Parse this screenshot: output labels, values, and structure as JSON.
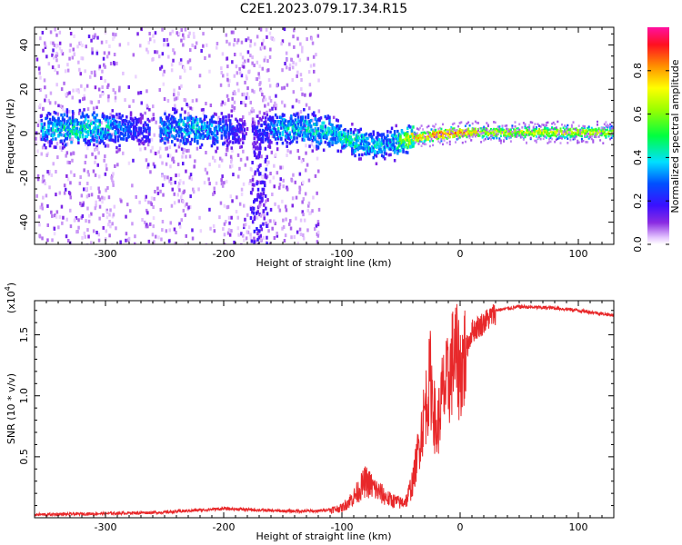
{
  "title": "C2E1.2023.079.17.34.R15",
  "chart_data": [
    {
      "type": "heatmap",
      "xlabel": "Height of straight line (km)",
      "ylabel": "Frequency (Hz)",
      "xlim": [
        -360,
        130
      ],
      "ylim": [
        -50,
        48
      ],
      "xticks": [
        -300,
        -200,
        -100,
        0,
        100
      ],
      "xtick_labels": [
        "-300",
        "-200",
        "-100",
        "0",
        "100"
      ],
      "yticks": [
        -40,
        -20,
        0,
        20,
        40
      ],
      "ytick_labels": [
        "-40",
        "-20",
        "0",
        "20",
        "40"
      ],
      "colorbar": {
        "label": "Normalized spectral amplitude",
        "range": [
          0,
          1
        ],
        "ticks": [
          0.0,
          0.2,
          0.4,
          0.6,
          0.8
        ],
        "tick_labels": [
          "0.0",
          "0.2",
          "0.4",
          "0.6",
          "0.8"
        ]
      },
      "ridge": {
        "x": [
          -350,
          -330,
          -300,
          -270,
          -250,
          -230,
          -200,
          -180,
          -150,
          -130,
          -110,
          -90,
          -75,
          -60,
          -45,
          -35,
          -20,
          0,
          20,
          50,
          100,
          130
        ],
        "center_hz": [
          3,
          3,
          3,
          2,
          3,
          3,
          2,
          1,
          3,
          3,
          1,
          -3,
          -5,
          -4,
          -2,
          -1,
          0,
          1,
          1,
          1,
          1,
          1
        ],
        "peak_amplitude": [
          0.35,
          0.45,
          0.4,
          0.2,
          0.35,
          0.4,
          0.3,
          0.15,
          0.4,
          0.4,
          0.4,
          0.45,
          0.4,
          0.35,
          0.65,
          0.8,
          0.9,
          0.85,
          0.7,
          0.7,
          0.7,
          0.65
        ]
      }
    },
    {
      "type": "line",
      "series": [
        {
          "name": "SNR",
          "color": "#e8282a"
        }
      ],
      "x": [
        -360,
        -300,
        -250,
        -200,
        -150,
        -120,
        -100,
        -90,
        -80,
        -70,
        -60,
        -50,
        -45,
        -40,
        -35,
        -30,
        -25,
        -20,
        -15,
        -10,
        -5,
        0,
        10,
        20,
        30,
        50,
        80,
        100,
        115,
        130
      ],
      "y": [
        0.02,
        0.03,
        0.04,
        0.07,
        0.05,
        0.05,
        0.08,
        0.17,
        0.3,
        0.22,
        0.15,
        0.12,
        0.15,
        0.3,
        0.6,
        0.9,
        1.2,
        0.7,
        1.05,
        1.15,
        1.4,
        1.25,
        1.55,
        1.62,
        1.7,
        1.73,
        1.72,
        1.7,
        1.68,
        1.66
      ],
      "xlabel": "Height of straight line (km)",
      "ylabel": "SNR (10 * v/v)",
      "multiplier": "(x10",
      "multiplier_exp": "4",
      "multiplier_close": ")",
      "xlim": [
        -360,
        130
      ],
      "ylim": [
        0,
        1.78
      ],
      "xticks": [
        -300,
        -200,
        -100,
        0,
        100
      ],
      "xtick_labels": [
        "-300",
        "-200",
        "-100",
        "0",
        "100"
      ],
      "yticks": [
        0.5,
        1.0,
        1.5
      ],
      "ytick_labels": [
        "0.5",
        "1.0",
        "1.5"
      ]
    }
  ]
}
